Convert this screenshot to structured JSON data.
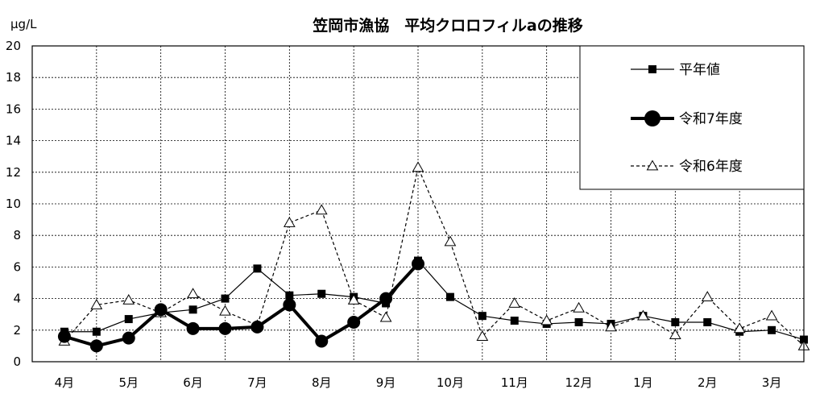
{
  "chart_data": {
    "type": "line",
    "title": "笠岡市漁協　平均クロロフィルaの推移",
    "ylabel": "μg/L",
    "xlabel": "",
    "ylim": [
      0,
      20
    ],
    "yticks": [
      0,
      2,
      4,
      6,
      8,
      10,
      12,
      14,
      16,
      18,
      20
    ],
    "grid": true,
    "legend_position": "top-right",
    "months": [
      "4月",
      "5月",
      "6月",
      "7月",
      "8月",
      "9月",
      "10月",
      "11月",
      "12月",
      "1月",
      "2月",
      "3月"
    ],
    "series": [
      {
        "name": "平年値",
        "style": "solid-thin",
        "marker": "square",
        "color": "#000000",
        "x": [
          0,
          0.5,
          1,
          1.5,
          2,
          2.5,
          3,
          3.5,
          4,
          4.5,
          5,
          5.5,
          6,
          6.5,
          7,
          7.5,
          8,
          8.5,
          9,
          9.5,
          10,
          10.5,
          11,
          11.5
        ],
        "values": [
          1.9,
          1.9,
          2.7,
          3.1,
          3.3,
          4.0,
          5.9,
          4.2,
          4.3,
          4.1,
          3.7,
          6.4,
          4.1,
          2.9,
          2.6,
          2.4,
          2.5,
          2.4,
          2.9,
          2.5,
          2.5,
          1.9,
          2.0,
          1.4
        ]
      },
      {
        "name": "令和7年度",
        "style": "solid-thick",
        "marker": "circle",
        "color": "#000000",
        "x": [
          0,
          0.5,
          1,
          1.5,
          2,
          2.5,
          3,
          3.5,
          4,
          4.5,
          5,
          5.5
        ],
        "values": [
          1.6,
          1.0,
          1.5,
          3.3,
          2.1,
          2.1,
          2.2,
          3.6,
          1.3,
          2.5,
          4.0,
          6.2
        ]
      },
      {
        "name": "令和6年度",
        "style": "dashed",
        "marker": "triangle",
        "color": "#000000",
        "x": [
          0,
          0.5,
          1,
          1.5,
          2,
          2.5,
          3,
          3.5,
          4,
          4.5,
          5,
          5.5,
          6,
          6.5,
          7,
          7.5,
          8,
          8.5,
          9,
          9.5,
          10,
          10.5,
          11,
          11.5
        ],
        "values": [
          1.3,
          3.6,
          3.9,
          3.1,
          4.3,
          3.2,
          2.3,
          8.8,
          9.6,
          3.9,
          2.8,
          12.3,
          7.6,
          1.6,
          3.7,
          2.6,
          3.4,
          2.2,
          2.9,
          1.7,
          4.1,
          2.1,
          2.9,
          1.0
        ]
      }
    ]
  }
}
